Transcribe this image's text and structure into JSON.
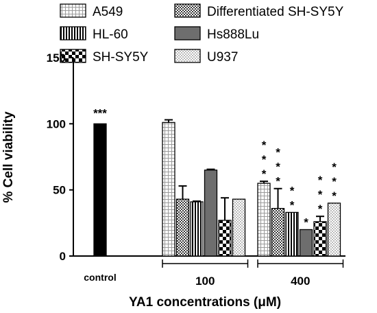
{
  "chart_data": {
    "type": "bar",
    "title": "",
    "ylabel": "% Cell viability",
    "xlabel": "YA1 concentrations (μM)",
    "ylim": [
      0,
      150
    ],
    "yticks": [
      "0",
      "50",
      "100",
      "150"
    ],
    "grid": false,
    "legend_position": "top",
    "groups": [
      {
        "label": "control",
        "bars": [
          {
            "series": "control",
            "value": 100,
            "error": 0,
            "annotation": "***"
          }
        ]
      },
      {
        "label": "100",
        "bars": [
          {
            "series": "A549",
            "value": 101,
            "error": 2,
            "annotation": ""
          },
          {
            "series": "Differentiated SH-SY5Y",
            "value": 43,
            "error": 10,
            "annotation": ""
          },
          {
            "series": "HL-60",
            "value": 41,
            "error": 0.5,
            "annotation": ""
          },
          {
            "series": "Hs888Lu",
            "value": 65,
            "error": 0.6,
            "annotation": ""
          },
          {
            "series": "SH-SY5Y",
            "value": 27,
            "error": 17,
            "annotation": ""
          },
          {
            "series": "U937",
            "value": 43,
            "error": 0,
            "annotation": ""
          }
        ]
      },
      {
        "label": "400",
        "bars": [
          {
            "series": "A549",
            "value": 55,
            "error": 1.5,
            "annotation": "***"
          },
          {
            "series": "Differentiated SH-SY5Y",
            "value": 36,
            "error": 15,
            "annotation": "***"
          },
          {
            "series": "HL-60",
            "value": 33,
            "error": 0,
            "annotation": "**"
          },
          {
            "series": "Hs888Lu",
            "value": 20,
            "error": 0,
            "annotation": "*"
          },
          {
            "series": "SH-SY5Y",
            "value": 26,
            "error": 4,
            "annotation": "***"
          },
          {
            "series": "U937",
            "value": 40,
            "error": 0,
            "annotation": "***"
          }
        ]
      }
    ],
    "legend": [
      {
        "series": "A549",
        "label": "A549"
      },
      {
        "series": "Differentiated SH-SY5Y",
        "label": "Differentiated SH-SY5Y"
      },
      {
        "series": "HL-60",
        "label": "HL-60"
      },
      {
        "series": "Hs888Lu",
        "label": "Hs888Lu"
      },
      {
        "series": "SH-SY5Y",
        "label": "SH-SY5Y"
      },
      {
        "series": "U937",
        "label": "U937"
      }
    ]
  }
}
